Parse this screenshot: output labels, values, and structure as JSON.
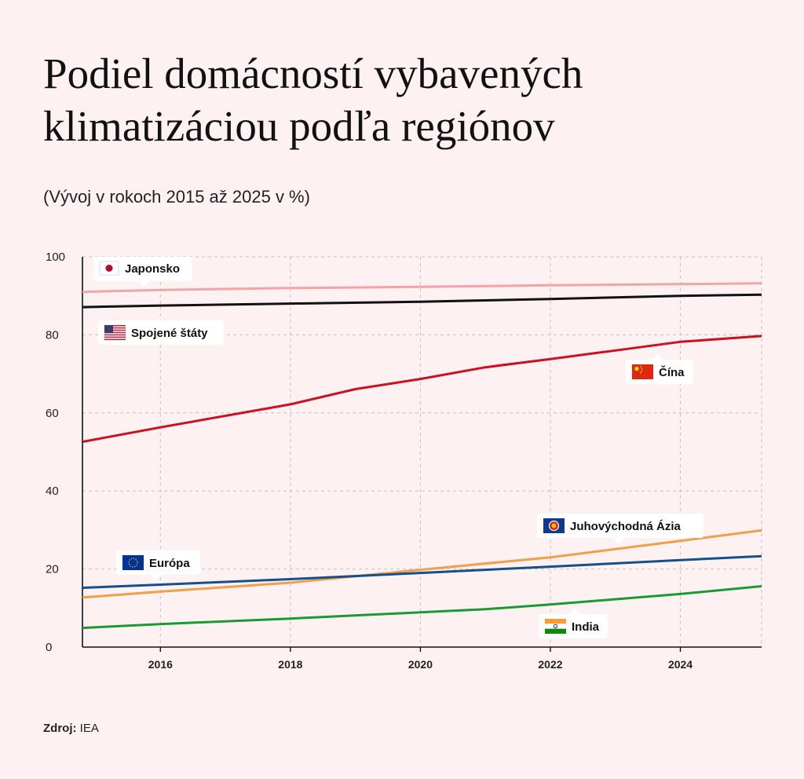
{
  "title": "Podiel domácností vybavených klimatizáciou podľa regiónov",
  "subtitle": "(Vývoj v rokoch 2015 až 2025 v %)",
  "source": {
    "label": "Zdroj:",
    "value": "IEA"
  },
  "chart_data": {
    "type": "line",
    "xlim": [
      2014.8,
      2025.25
    ],
    "ylim": [
      0,
      100
    ],
    "xticks": [
      "2016",
      "2018",
      "2020",
      "2022",
      "2024"
    ],
    "yticks": [
      "0",
      "20",
      "40",
      "60",
      "80",
      "100"
    ],
    "grid": true,
    "series": [
      {
        "name": "Japonsko",
        "color": "#f4a3a6",
        "flag": "japan-flag-icon",
        "x": [
          2014.8,
          2016,
          2018,
          2020,
          2022,
          2024,
          2025.25
        ],
        "y": [
          91,
          91.5,
          92,
          92.3,
          92.7,
          93,
          93.2
        ]
      },
      {
        "name": "Spojené štáty",
        "color": "#111111",
        "flag": "us-flag-icon",
        "x": [
          2014.8,
          2016,
          2018,
          2020,
          2022,
          2024,
          2025.25
        ],
        "y": [
          87.1,
          87.5,
          88,
          88.5,
          89.2,
          90,
          90.3
        ]
      },
      {
        "name": "Čína",
        "color": "#cc1020",
        "flag": "china-flag-icon",
        "x": [
          2014.8,
          2016,
          2018,
          2019,
          2020,
          2021,
          2022,
          2023,
          2024,
          2025.25
        ],
        "y": [
          52.6,
          56.3,
          62.2,
          66.1,
          68.7,
          71.7,
          73.8,
          76,
          78.2,
          79.7
        ]
      },
      {
        "name": "Juhovýchodná Ázia",
        "color": "#f0a04b",
        "flag": "asean-flag-icon",
        "x": [
          2014.8,
          2016,
          2018,
          2020,
          2022,
          2024,
          2025.25
        ],
        "y": [
          12.7,
          14.2,
          16.5,
          19.8,
          23,
          27.2,
          29.9
        ]
      },
      {
        "name": "Európa",
        "color": "#12508f",
        "flag": "eu-flag-icon",
        "x": [
          2014.8,
          2016,
          2018,
          2020,
          2022,
          2024,
          2025.25
        ],
        "y": [
          15.2,
          16,
          17.4,
          19,
          20.6,
          22.3,
          23.3
        ]
      },
      {
        "name": "India",
        "color": "#189a35",
        "flag": "india-flag-icon",
        "x": [
          2014.8,
          2016,
          2018,
          2020,
          2021,
          2022,
          2024,
          2025.25
        ],
        "y": [
          4.9,
          5.9,
          7.3,
          8.9,
          9.7,
          10.9,
          13.6,
          15.6
        ]
      }
    ]
  }
}
